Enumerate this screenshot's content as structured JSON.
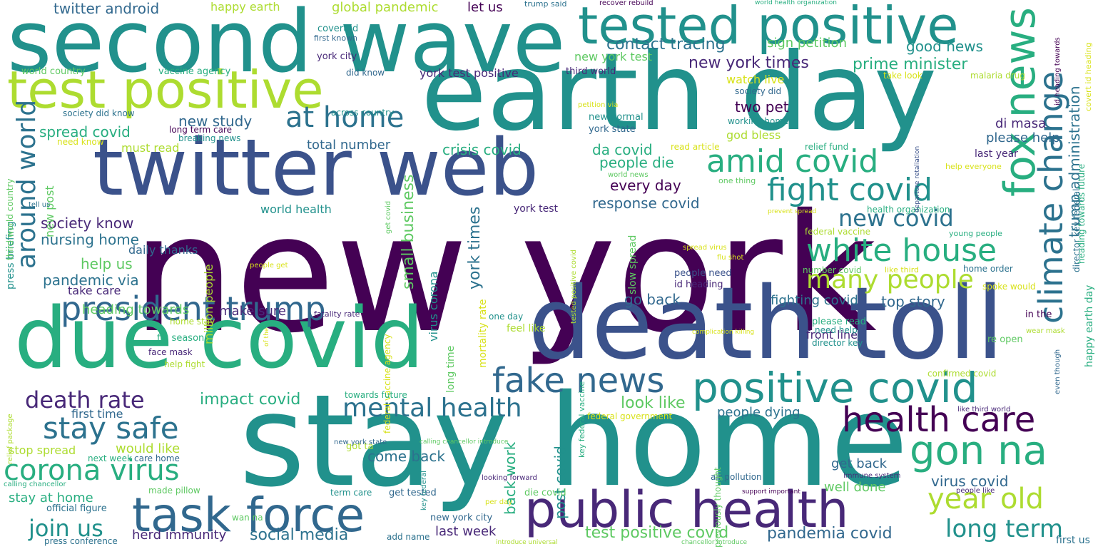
{
  "words": [
    "new york",
    "stay home",
    "death toll",
    "earth day",
    "second wave",
    "twitter web",
    "due covid",
    "test positive",
    "tested positive",
    "public health",
    "task force",
    "positive covid",
    "fox news",
    "president trump",
    "health care",
    "gon na",
    "fake news",
    "white house",
    "amid covid",
    "fight covid",
    "climate change",
    "around world",
    "many people",
    "stay safe",
    "corona virus",
    "mental health",
    "year old",
    "long term",
    "at home",
    "new covid",
    "death rate",
    "join us",
    "new york times",
    "trump administration",
    "small business",
    "york times",
    "look like",
    "impact covid",
    "social media",
    "herd immunity",
    "last week",
    "test positive covid",
    "pandemia covid",
    "virus covid",
    "contact tracing",
    "prime minister",
    "sign petition",
    "good news",
    "twitter android",
    "happy earth",
    "global pandemic",
    "let us",
    "spread covid",
    "new study",
    "total number",
    "crisis covid",
    "da covid",
    "people die",
    "every day",
    "response covid",
    "society know",
    "nursing home",
    "help us",
    "pandemic via",
    "take care",
    "heading towards",
    "make sure",
    "go back",
    "fighting covid",
    "top story",
    "front line",
    "come back",
    "people dying",
    "would like",
    "stop spread",
    "stay at home",
    "well done",
    "get back",
    "back work",
    "post covid",
    "first time",
    "two pet",
    "please help",
    "di masa",
    "watch live",
    "god bless",
    "york test positive",
    "new york test",
    "covert id",
    "first known",
    "york city",
    "world country",
    "vaccine agency",
    "did know",
    "third world",
    "society did know",
    "long term care",
    "breaking news",
    "must read",
    "need know",
    "new post",
    "daily thanks",
    "tell us",
    "world health",
    "million people",
    "virus corona",
    "mortality rate",
    "long time",
    "york test",
    "federal vaccine agency",
    "get covid",
    "new normal",
    "york state",
    "working home",
    "relief fund",
    "read article",
    "society did",
    "take look",
    "malaria drug",
    "id heading towards",
    "covert id heading",
    "last year",
    "help everyone",
    "world news",
    "one thing",
    "health organization",
    "prevent spread",
    "federal vaccine",
    "young people",
    "departure retaliation",
    "trump said",
    "recover rebuild",
    "world health organization",
    "across country",
    "petition via",
    "flu shot",
    "spread virus",
    "slow spread",
    "tested positive covid",
    "people need",
    "id heading",
    "number covid",
    "like third",
    "home order",
    "spoke would",
    "people get",
    "press briefing",
    "third world country",
    "of the",
    "fatality rate",
    "home stay",
    "flu season",
    "face mask",
    "help fight",
    "one day",
    "feel like",
    "please read",
    "need help",
    "director key",
    "re open",
    "in the",
    "wear mask",
    "complication killing",
    "confirmed covid",
    "director key federal",
    "heading towards future",
    "happy earth day",
    "relief package",
    "calling chancellor introduce",
    "federal government",
    "key federal vaccine",
    "like third world",
    "even though",
    "towards future",
    "got ta",
    "next week",
    "care home",
    "made pillow",
    "key federal",
    "immune system",
    "air pollution",
    "looking forward",
    "people like",
    "term care",
    "get tested",
    "die covid",
    "per day",
    "official figure",
    "support important",
    "previously thought",
    "calling chancellor",
    "wan na",
    "new york city",
    "add name",
    "new york state",
    "press conference",
    "introduce universal",
    "chancellor introduce",
    "first us"
  ]
}
